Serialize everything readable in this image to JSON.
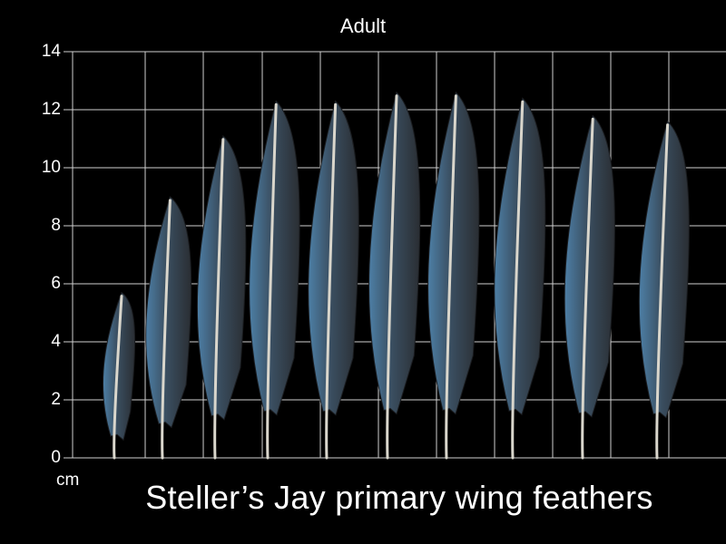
{
  "title": "Adult",
  "unit_label": "cm",
  "caption": "Steller’s Jay primary wing feathers",
  "colors": {
    "background": "#000000",
    "grid": "#cfcfcf",
    "text": "#ffffff",
    "feather_dark": "#2a2e33",
    "feather_blue": "#4d7fa6",
    "shaft": "#d9d6cc"
  },
  "y_axis": {
    "min": 0,
    "max": 14,
    "step": 2,
    "ticks": [
      "0",
      "2",
      "4",
      "6",
      "8",
      "10",
      "12",
      "14"
    ]
  },
  "feathers": [
    {
      "length_cm": 5.7
    },
    {
      "length_cm": 9.0
    },
    {
      "length_cm": 11.1
    },
    {
      "length_cm": 12.3
    },
    {
      "length_cm": 12.3
    },
    {
      "length_cm": 12.6
    },
    {
      "length_cm": 12.6
    },
    {
      "length_cm": 12.4
    },
    {
      "length_cm": 11.8
    },
    {
      "length_cm": 11.6
    }
  ]
}
